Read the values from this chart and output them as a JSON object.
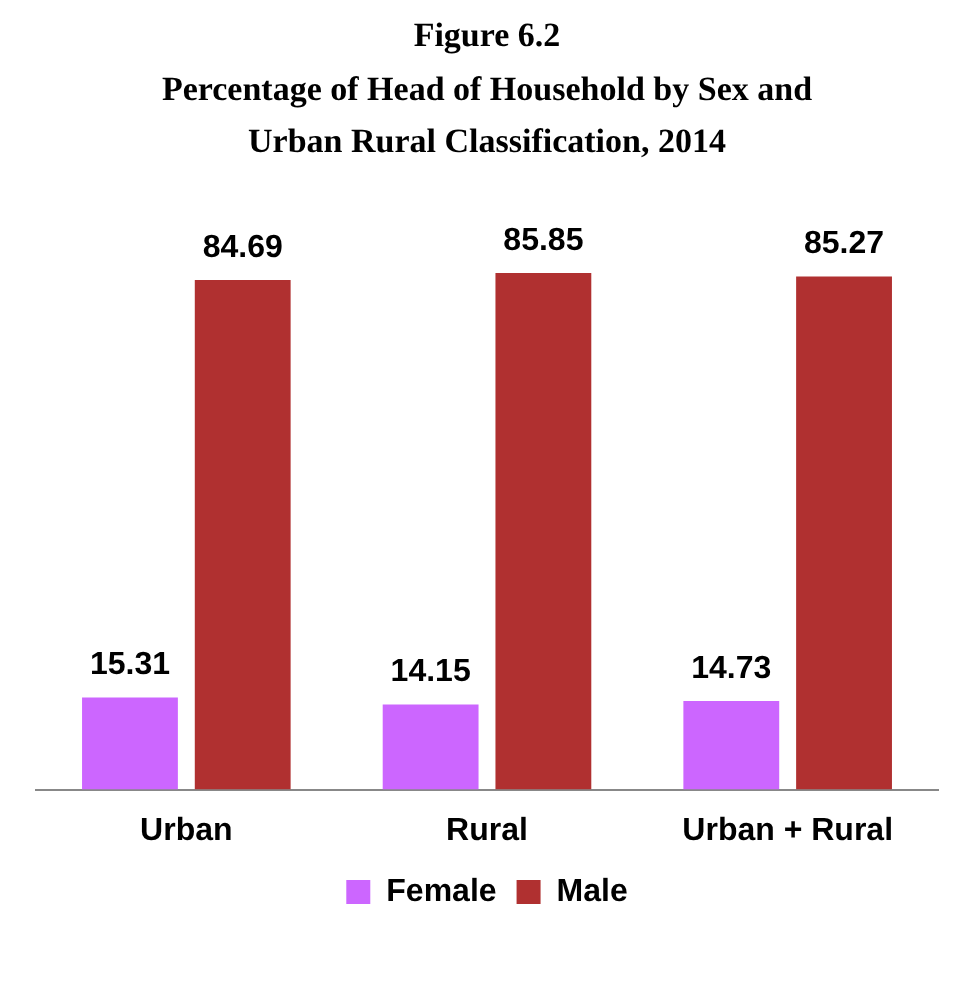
{
  "chart_data": {
    "type": "bar",
    "title": "Figure 6.2",
    "subtitle": "Percentage of Head of Household by Sex and Urban Rural Classification, 2014",
    "categories": [
      "Urban",
      "Rural",
      "Urban + Rural"
    ],
    "series": [
      {
        "name": "Female",
        "color": "#cc66ff",
        "values": [
          15.31,
          14.15,
          14.73
        ]
      },
      {
        "name": "Male",
        "color": "#b03030",
        "values": [
          84.69,
          85.85,
          85.27
        ]
      }
    ],
    "data_labels": true,
    "legend": "bottom",
    "grid": false
  }
}
